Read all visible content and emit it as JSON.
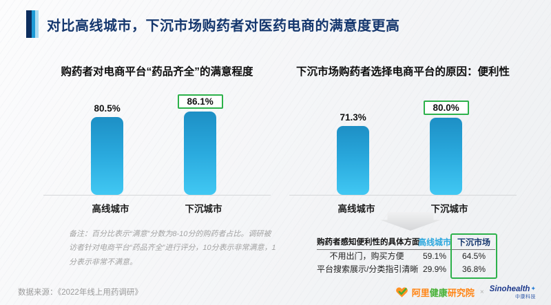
{
  "header": {
    "title": "对比高线城市，下沉市场购药者对医药电商的满意度更高"
  },
  "colors": {
    "title_navy": "#15376e",
    "accent_dark": "#0c2d5d",
    "accent_mid": "#1d9ad6",
    "accent_light": "#aadcf2",
    "bar_gradient_top": "#1d8fc5",
    "bar_gradient_bottom": "#41c8f3",
    "highlight_green": "#2cb14a",
    "table_header_high_tier": "#2ba7de",
    "table_header_low_tier": "#15376e",
    "note_gray": "#a3a3a3"
  },
  "icons": {
    "down_arrow": "down-arrow",
    "heart_check": "heart-with-check",
    "sparkle": "✦"
  },
  "chart_data": [
    {
      "type": "bar",
      "title": "购药者对电商平台“药品齐全”的满意程度",
      "categories": [
        "高线城市",
        "下沉城市"
      ],
      "values": [
        80.5,
        86.1
      ],
      "value_labels": [
        "80.5%",
        "86.1%"
      ],
      "highlighted_category": "下沉城市",
      "xlabel": "",
      "ylabel": "",
      "ylim": [
        0,
        100
      ],
      "grid": false,
      "legend": "none"
    },
    {
      "type": "bar",
      "title": "下沉市场购药者选择电商平台的原因：便利性",
      "categories": [
        "高线城市",
        "下沉城市"
      ],
      "values": [
        71.3,
        80.0
      ],
      "value_labels": [
        "71.3%",
        "80.0%"
      ],
      "highlighted_category": "下沉城市",
      "xlabel": "",
      "ylabel": "",
      "ylim": [
        0,
        100
      ],
      "grid": false,
      "legend": "none"
    },
    {
      "type": "table",
      "headers": [
        "购药者感知便利性的具体方面",
        "高线城市",
        "下沉市场"
      ],
      "rows": [
        [
          "不用出门，购买方便",
          "59.1%",
          "64.5%"
        ],
        [
          "平台搜索展示/分类指引清晰",
          "29.9%",
          "36.8%"
        ]
      ],
      "highlighted_column": "下沉市场"
    }
  ],
  "note": "备注：百分比表示“满意”分数为8-10分的购药者占比。调研被访者针对电商平台“药品齐全”进行评分，10分表示非常满意，1分表示非常不满意。",
  "source": "数据来源：《2022年线上用药调研》",
  "footer": {
    "ali_part1": "阿里",
    "ali_part2": "健康",
    "ali_part3": "研究院",
    "separator": "×",
    "sino_name": "Sinohealth",
    "sino_star": "✦",
    "sino_sub": "中康科技"
  }
}
